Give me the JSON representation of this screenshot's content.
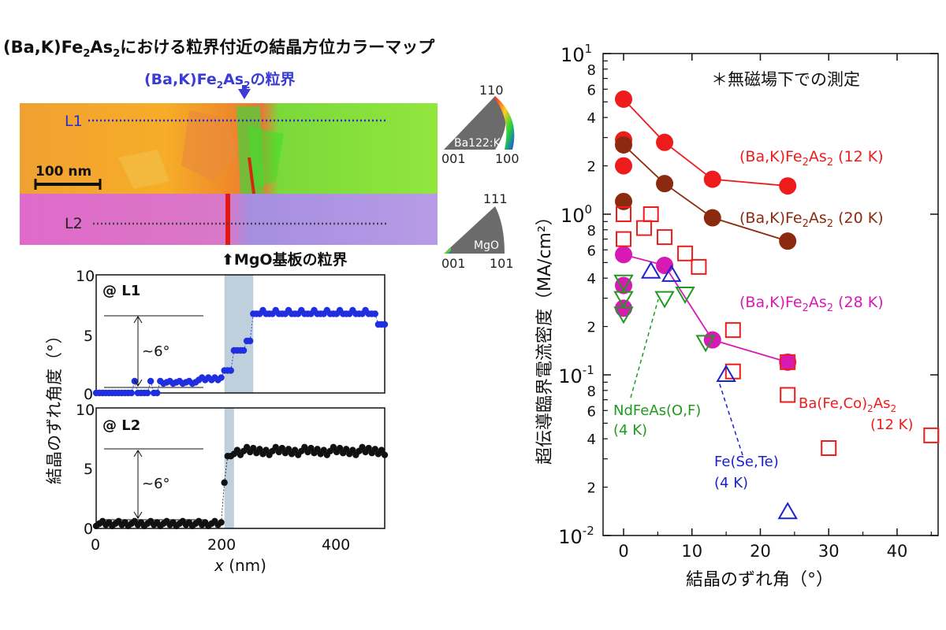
{
  "map": {
    "title_prefix": "(Ba,K)Fe",
    "title_sub1": "2",
    "title_mid": "As",
    "title_sub2": "2",
    "title_suffix": "における粒界付近の結晶方位カラーマップ",
    "gb_prefix": "(Ba,K)Fe",
    "gb_sub1": "2",
    "gb_mid": "As",
    "gb_sub2": "2",
    "gb_suffix": "の粒界",
    "mgo_label": "MgO基板の粒界",
    "line1": "L1",
    "line2": "L2",
    "scale_bar": "100 nm",
    "legend1": {
      "top": "110",
      "left": "001",
      "right": "100",
      "name": "Ba122:K"
    },
    "legend2": {
      "top": "111",
      "left": "001",
      "right": "101",
      "name": "MgO"
    },
    "colors": {
      "orange": "#f5a623",
      "green": "#8ee53f",
      "pink": "#e070c8",
      "red": "#e01818",
      "blue_line": "#2a2ad0"
    }
  },
  "profiles": {
    "ylabel": "結晶のずれ角度（°）",
    "xlabel_var": "x",
    "xlabel_unit": " (nm)",
    "xticks": [
      "0",
      "200",
      "400"
    ],
    "yticks": [
      "0",
      "5",
      "10"
    ],
    "annotation": "~6°",
    "l1": {
      "label": "@ L1",
      "color": "#1f2fe0",
      "band_start": 200,
      "band_end": 245
    },
    "l2": {
      "label": "@ L2",
      "color": "#111111",
      "band_start": 200,
      "band_end": 215
    }
  },
  "chart_data": {
    "type": "scatter",
    "scale": "log",
    "xlabel": "結晶のずれ角（°）",
    "ylabel": "超伝導臨界電流密度（MA/cm²）",
    "xlim": [
      -3,
      46
    ],
    "ylim": [
      0.01,
      10
    ],
    "xticks": [
      "0",
      "10",
      "20",
      "30",
      "40"
    ],
    "note": "＊無磁場下での測定",
    "series": [
      {
        "name": "(Ba,K)Fe2As2 (12 K)",
        "label_prefix": "(Ba,K)Fe",
        "label_sub1": "2",
        "label_mid": "As",
        "label_sub2": "2",
        "label_suffix": " (12 K)",
        "marker": "filled-circle",
        "color": "#ee1c1c",
        "line": true,
        "points": [
          [
            0,
            5.2
          ],
          [
            0,
            2.9
          ],
          [
            0,
            2.0
          ],
          [
            6,
            2.8
          ],
          [
            13,
            1.65
          ],
          [
            24,
            1.5
          ]
        ]
      },
      {
        "name": "(Ba,K)Fe2As2 (20 K)",
        "label_prefix": "(Ba,K)Fe",
        "label_sub1": "2",
        "label_mid": "As",
        "label_sub2": "2",
        "label_suffix": " (20 K)",
        "marker": "filled-circle",
        "color": "#8b2a0e",
        "line": true,
        "points": [
          [
            0,
            2.7
          ],
          [
            0,
            1.2
          ],
          [
            6,
            1.55
          ],
          [
            13,
            0.95
          ],
          [
            24,
            0.68
          ]
        ]
      },
      {
        "name": "(Ba,K)Fe2As2 (28 K)",
        "label_prefix": "(Ba,K)Fe",
        "label_sub1": "2",
        "label_mid": "As",
        "label_sub2": "2",
        "label_suffix": " (28 K)",
        "marker": "filled-circle",
        "color": "#d81ab5",
        "line": true,
        "points": [
          [
            0,
            0.56
          ],
          [
            0,
            0.36
          ],
          [
            0,
            0.26
          ],
          [
            6,
            0.48
          ],
          [
            13,
            0.165
          ],
          [
            24,
            0.12
          ]
        ]
      },
      {
        "name": "Ba(Fe,Co)2As2 (12 K)",
        "label1_prefix": "Ba(Fe,Co)",
        "label1_sub": "2",
        "label1_mid": "As",
        "label1_sub2": "2",
        "label2": "(12 K)",
        "marker": "open-square",
        "color": "#ee1c1c",
        "line": false,
        "points": [
          [
            0,
            1.0
          ],
          [
            0,
            0.7
          ],
          [
            3,
            0.82
          ],
          [
            4,
            1.0
          ],
          [
            6,
            0.72
          ],
          [
            9,
            0.57
          ],
          [
            11,
            0.47
          ],
          [
            16,
            0.19
          ],
          [
            16,
            0.105
          ],
          [
            24,
            0.12
          ],
          [
            24,
            0.075
          ],
          [
            30,
            0.035
          ],
          [
            45,
            0.042
          ]
        ]
      },
      {
        "name": "NdFeAs(O,F) (4 K)",
        "label1": "NdFeAs(O,F)",
        "label2": "(4 K)",
        "marker": "open-triangle-down",
        "color": "#1f9a1f",
        "line": false,
        "points": [
          [
            0,
            0.38
          ],
          [
            0,
            0.3
          ],
          [
            0,
            0.24
          ],
          [
            6,
            0.3
          ],
          [
            9,
            0.32
          ],
          [
            12,
            0.16
          ]
        ]
      },
      {
        "name": "Fe(Se,Te) (4 K)",
        "label1": "Fe(Se,Te)",
        "label2": "(4 K)",
        "marker": "open-triangle-up",
        "color": "#1c22c8",
        "line": false,
        "points": [
          [
            4,
            0.44
          ],
          [
            7,
            0.42
          ],
          [
            15,
            0.1
          ],
          [
            24,
            0.014
          ]
        ]
      }
    ]
  }
}
